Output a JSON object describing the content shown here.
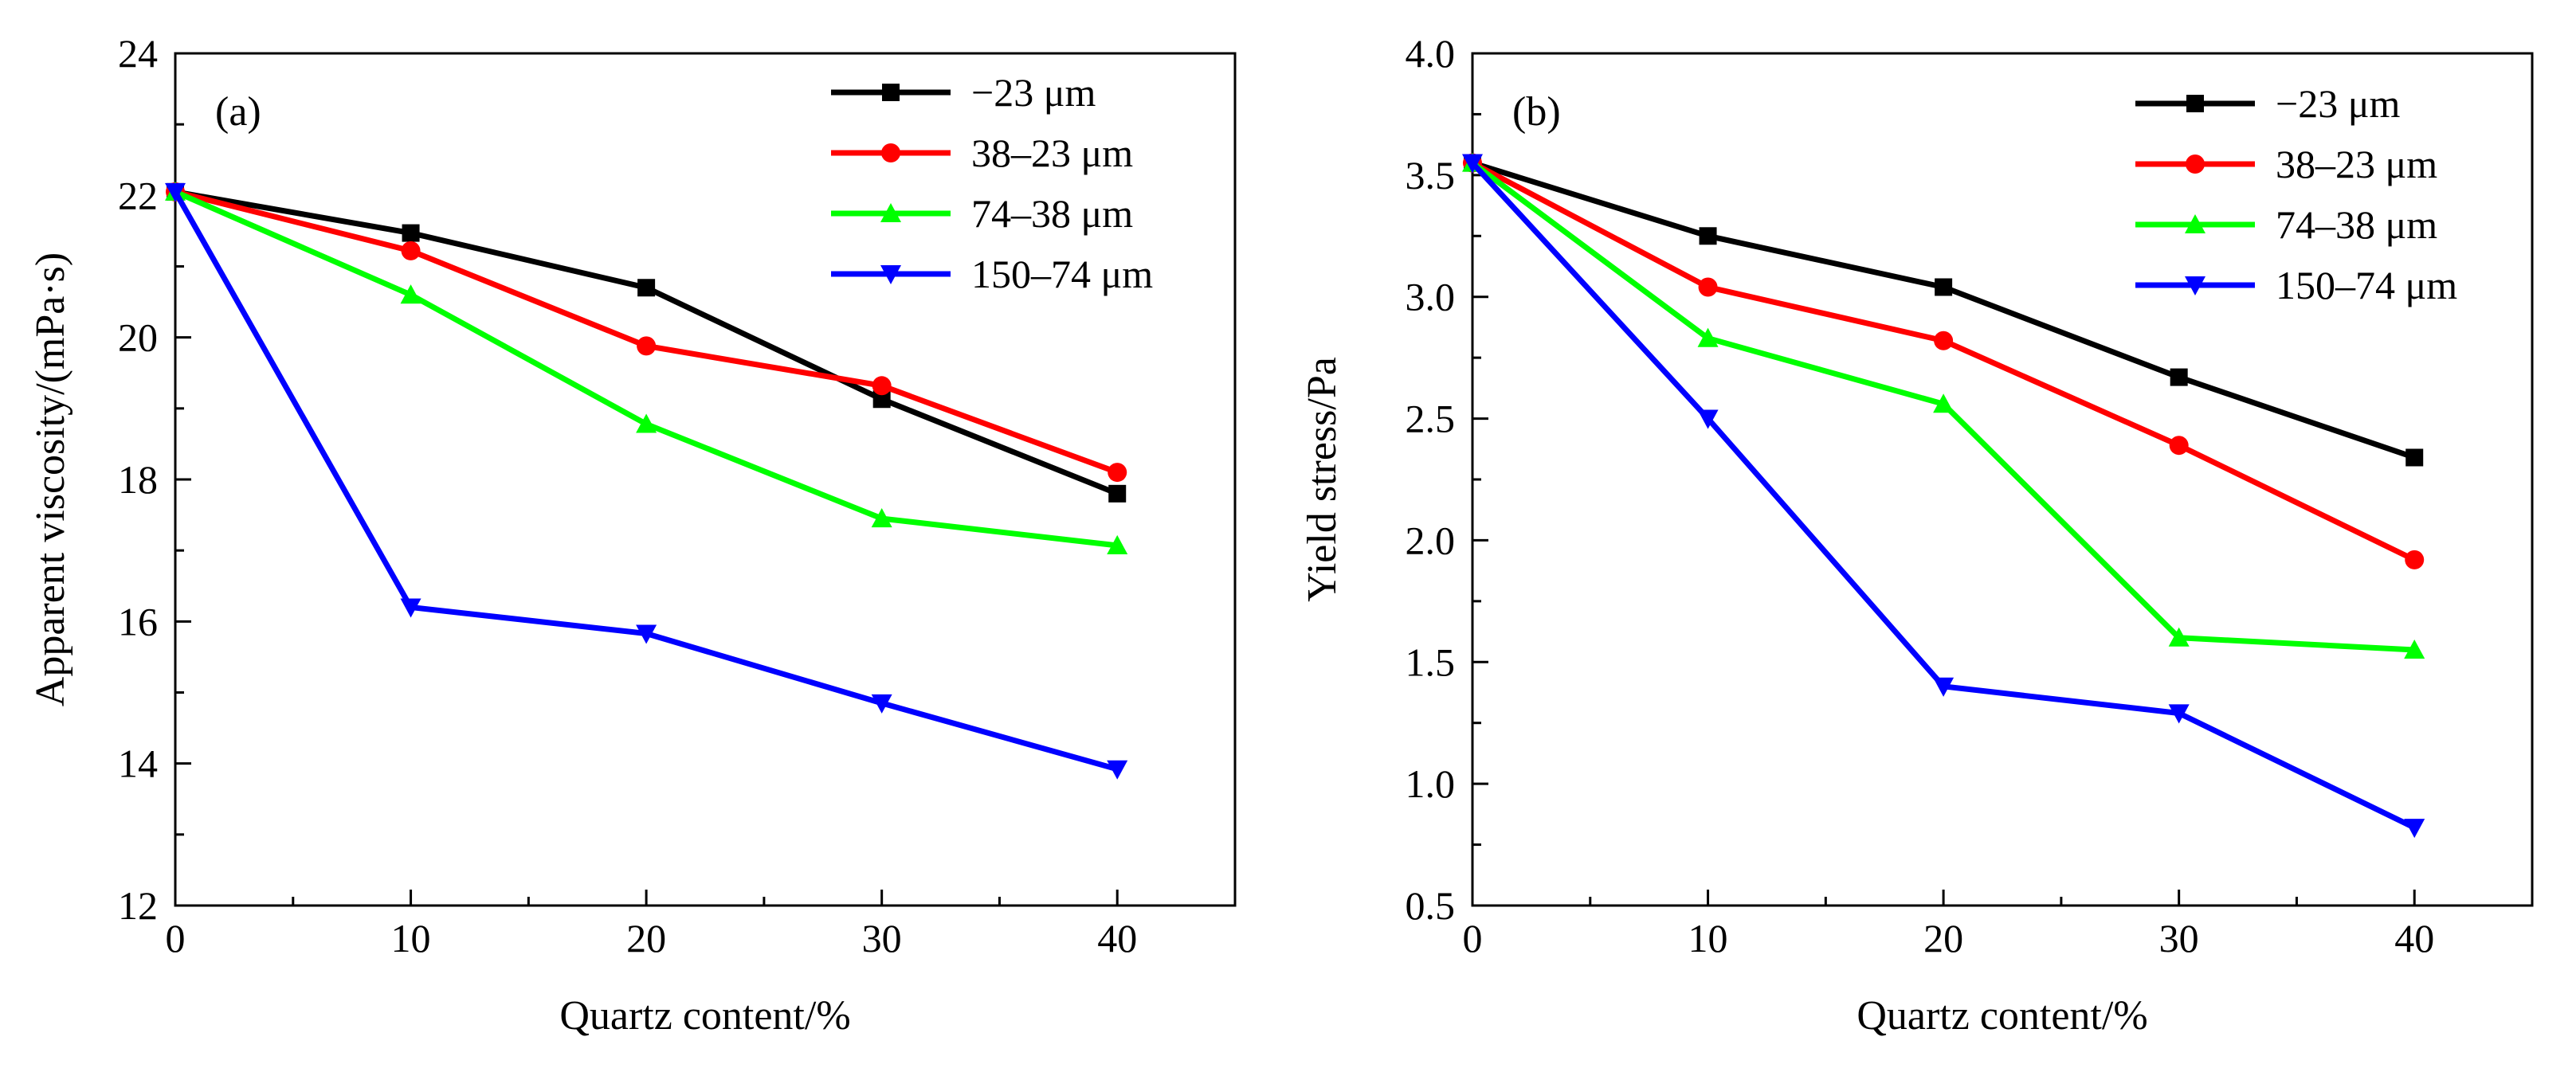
{
  "chart_data": [
    {
      "type": "line",
      "panel_label": "(a)",
      "title": "",
      "xlabel": "Quartz content/%",
      "ylabel": "Apparent viscosity/(mPa·s)",
      "x": [
        0,
        10,
        20,
        30,
        40
      ],
      "xlim": [
        0,
        45
      ],
      "ylim": [
        12,
        24
      ],
      "xticks": [
        0,
        10,
        20,
        30,
        40
      ],
      "xtick_labels": [
        "0",
        "10",
        "20",
        "30",
        "40"
      ],
      "yticks": [
        12,
        14,
        16,
        18,
        20,
        22,
        24
      ],
      "ytick_labels": [
        "12",
        "14",
        "16",
        "18",
        "20",
        "22",
        "24"
      ],
      "grid": false,
      "legend_position": "top-right",
      "series": [
        {
          "name": "−23 μm",
          "color": "#000000",
          "marker": "square",
          "values": [
            22.05,
            21.47,
            20.7,
            19.13,
            17.8
          ]
        },
        {
          "name": "38–23 μm",
          "color": "#ff0000",
          "marker": "circle",
          "values": [
            22.05,
            21.22,
            19.88,
            19.32,
            18.1
          ]
        },
        {
          "name": "74–38 μm",
          "color": "#00ff00",
          "marker": "triangle-up",
          "values": [
            22.05,
            20.6,
            18.78,
            17.45,
            17.07
          ]
        },
        {
          "name": "150–74 μm",
          "color": "#0000ff",
          "marker": "triangle-down",
          "values": [
            22.05,
            16.2,
            15.83,
            14.85,
            13.92
          ]
        }
      ]
    },
    {
      "type": "line",
      "panel_label": "(b)",
      "title": "",
      "xlabel": "Quartz content/%",
      "ylabel": "Yield stress/Pa",
      "x": [
        0,
        10,
        20,
        30,
        40
      ],
      "xlim": [
        0,
        45
      ],
      "ylim": [
        0.5,
        4.0
      ],
      "xticks": [
        0,
        10,
        20,
        30,
        40
      ],
      "xtick_labels": [
        "0",
        "10",
        "20",
        "30",
        "40"
      ],
      "yticks": [
        0.5,
        1.0,
        1.5,
        2.0,
        2.5,
        3.0,
        3.5,
        4.0
      ],
      "ytick_labels": [
        "0.5",
        "1.0",
        "1.5",
        "2.0",
        "2.5",
        "3.0",
        "3.5",
        "4.0"
      ],
      "grid": false,
      "legend_position": "top-right",
      "series": [
        {
          "name": "−23 μm",
          "color": "#000000",
          "marker": "square",
          "values": [
            3.55,
            3.25,
            3.04,
            2.67,
            2.34
          ]
        },
        {
          "name": "38–23 μm",
          "color": "#ff0000",
          "marker": "circle",
          "values": [
            3.55,
            3.04,
            2.82,
            2.39,
            1.92
          ]
        },
        {
          "name": "74–38 μm",
          "color": "#00ff00",
          "marker": "triangle-up",
          "values": [
            3.55,
            2.83,
            2.56,
            1.6,
            1.55
          ]
        },
        {
          "name": "150–74 μm",
          "color": "#0000ff",
          "marker": "triangle-down",
          "values": [
            3.55,
            2.5,
            1.4,
            1.29,
            0.82
          ]
        }
      ]
    }
  ]
}
